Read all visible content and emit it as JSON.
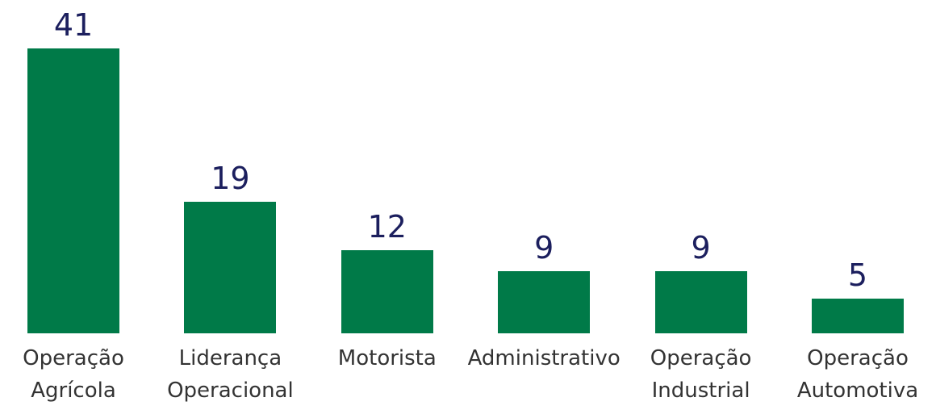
{
  "chart_data": {
    "type": "bar",
    "categories": [
      "Operação Agrícola",
      "Liderança Operacional",
      "Motorista",
      "Administrativo",
      "Operação Industrial",
      "Operação Automotiva"
    ],
    "values": [
      41,
      19,
      12,
      9,
      9,
      5
    ],
    "color": "#007a48"
  }
}
